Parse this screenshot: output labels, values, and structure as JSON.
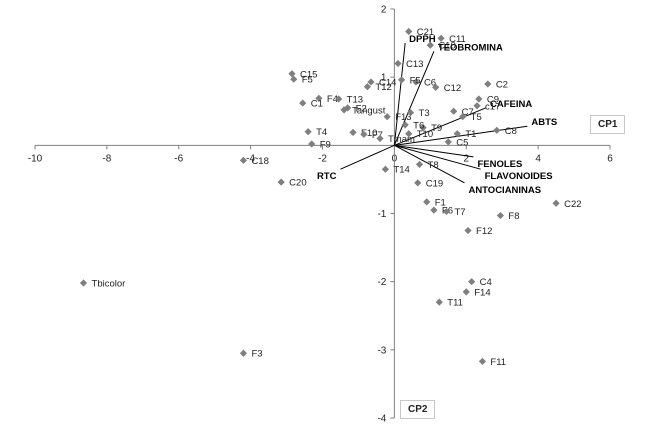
{
  "chart_data": {
    "type": "scatter",
    "xlim": [
      -10,
      6
    ],
    "ylim": [
      -4,
      2
    ],
    "x_ticks": [
      -10,
      -8,
      -6,
      -4,
      -2,
      0,
      2,
      4,
      6
    ],
    "y_ticks": [
      -4,
      -3,
      -2,
      -1,
      0,
      1,
      2
    ],
    "xlabel": "CP1",
    "ylabel": "CP2",
    "marker_color": "#7f7f7f",
    "vector_color": "#000000",
    "points": [
      {
        "label": "C21",
        "x": 0.4,
        "y": 1.67
      },
      {
        "label": "C11",
        "x": 1.3,
        "y": 1.57
      },
      {
        "label": "C10",
        "x": 1.0,
        "y": 1.47
      },
      {
        "label": "C13",
        "x": 0.1,
        "y": 1.2
      },
      {
        "label": "C15",
        "x": -2.85,
        "y": 1.05
      },
      {
        "label": "F5",
        "x": -2.8,
        "y": 0.97
      },
      {
        "label": "C14",
        "x": -0.65,
        "y": 0.93
      },
      {
        "label": "T12",
        "x": -0.75,
        "y": 0.86
      },
      {
        "label": "C6",
        "x": 0.6,
        "y": 0.93
      },
      {
        "label": "F5",
        "x": 0.2,
        "y": 0.96
      },
      {
        "label": "C12",
        "x": 1.15,
        "y": 0.85
      },
      {
        "label": "C2",
        "x": 2.6,
        "y": 0.9
      },
      {
        "label": "F4",
        "x": -2.1,
        "y": 0.69
      },
      {
        "label": "C1",
        "x": -2.55,
        "y": 0.62
      },
      {
        "label": "T13",
        "x": -1.55,
        "y": 0.68
      },
      {
        "label": "Tangust",
        "x": -1.4,
        "y": 0.52
      },
      {
        "label": "F2",
        "x": -1.3,
        "y": 0.55
      },
      {
        "label": "F13",
        "x": -0.2,
        "y": 0.42
      },
      {
        "label": "C9",
        "x": 2.35,
        "y": 0.68
      },
      {
        "label": "c17",
        "x": 2.3,
        "y": 0.58
      },
      {
        "label": "C7",
        "x": 1.65,
        "y": 0.5
      },
      {
        "label": "T5",
        "x": 1.9,
        "y": 0.42
      },
      {
        "label": "C8",
        "x": 2.85,
        "y": 0.22
      },
      {
        "label": "T1",
        "x": 1.75,
        "y": 0.17
      },
      {
        "label": "T9",
        "x": 0.8,
        "y": 0.26
      },
      {
        "label": "T10",
        "x": 0.4,
        "y": 0.17
      },
      {
        "label": "T6",
        "x": 0.3,
        "y": 0.3
      },
      {
        "label": "T3",
        "x": 0.45,
        "y": 0.48
      },
      {
        "label": "T4",
        "x": -2.4,
        "y": 0.2
      },
      {
        "label": "F10",
        "x": -1.15,
        "y": 0.19
      },
      {
        "label": "F7",
        "x": -0.85,
        "y": 0.16
      },
      {
        "label": "F9",
        "x": -2.3,
        "y": 0.02
      },
      {
        "label": "Tmam",
        "x": -0.4,
        "y": 0.1
      },
      {
        "label": "C5",
        "x": 1.5,
        "y": 0.05
      },
      {
        "label": "T8",
        "x": 0.7,
        "y": -0.28
      },
      {
        "label": "T14",
        "x": -0.25,
        "y": -0.35
      },
      {
        "label": "C19",
        "x": 0.65,
        "y": -0.55
      },
      {
        "label": "C18",
        "x": -4.2,
        "y": -0.22
      },
      {
        "label": "C20",
        "x": -3.15,
        "y": -0.54
      },
      {
        "label": "F1",
        "x": 0.9,
        "y": -0.83
      },
      {
        "label": "F6",
        "x": 1.1,
        "y": -0.95
      },
      {
        "label": "T7",
        "x": 1.45,
        "y": -0.97
      },
      {
        "label": "F8",
        "x": 2.95,
        "y": -1.03
      },
      {
        "label": "F12",
        "x": 2.05,
        "y": -1.25
      },
      {
        "label": "C22",
        "x": 4.5,
        "y": -0.85
      },
      {
        "label": "C4",
        "x": 2.15,
        "y": -2.0
      },
      {
        "label": "F14",
        "x": 2.0,
        "y": -2.15
      },
      {
        "label": "T11",
        "x": 1.25,
        "y": -2.3
      },
      {
        "label": "Tbicolor",
        "x": -8.65,
        "y": -2.02
      },
      {
        "label": "F3",
        "x": -4.2,
        "y": -3.05
      },
      {
        "label": "F11",
        "x": 2.45,
        "y": -3.17
      }
    ],
    "vectors": [
      {
        "label": "DPPH",
        "x": 0.3,
        "y": 1.5
      },
      {
        "label": "TEOBROMINA",
        "x": 1.1,
        "y": 1.38
      },
      {
        "label": "CAFEINA",
        "x": 2.55,
        "y": 0.55
      },
      {
        "label": "ABTS",
        "x": 3.7,
        "y": 0.28
      },
      {
        "label": "FENOLES",
        "x": 2.2,
        "y": -0.17
      },
      {
        "label": "FLAVONOIDES",
        "x": 2.4,
        "y": -0.35
      },
      {
        "label": "ANTOCIANINAS",
        "x": 1.95,
        "y": -0.55
      },
      {
        "label": "RTC",
        "x": -1.5,
        "y": -0.35
      }
    ]
  }
}
